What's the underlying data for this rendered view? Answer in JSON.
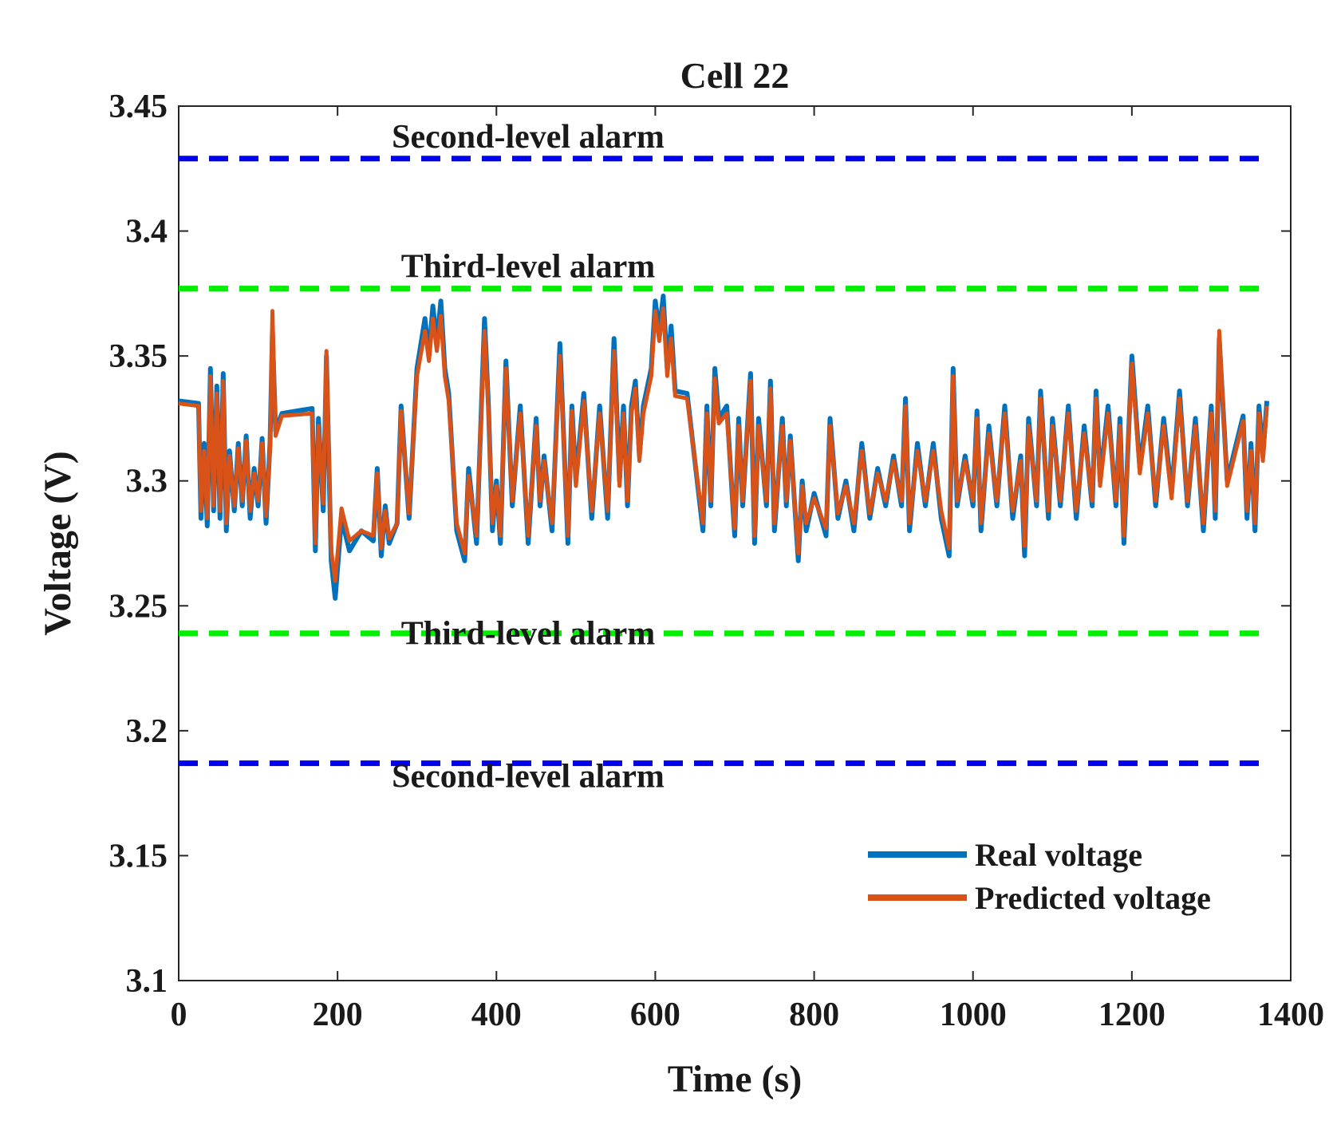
{
  "chart_data": {
    "type": "line",
    "title": "Cell 22",
    "xlabel": "Time (s)",
    "ylabel": "Voltage (V)",
    "xlim": [
      0,
      1400
    ],
    "ylim": [
      3.1,
      3.45
    ],
    "xticks": [
      0,
      200,
      400,
      600,
      800,
      1000,
      1200,
      1400
    ],
    "xtick_labels": [
      "0",
      "200",
      "400",
      "600",
      "800",
      "1000",
      "1200",
      "1400"
    ],
    "yticks": [
      3.1,
      3.15,
      3.2,
      3.25,
      3.3,
      3.35,
      3.4,
      3.45
    ],
    "ytick_labels": [
      "3.1",
      "3.15",
      "3.2",
      "3.25",
      "3.3",
      "3.35",
      "3.4",
      "3.45"
    ],
    "grid": false,
    "legend_position": "lower-right",
    "thresholds": [
      {
        "name": "Second-level alarm",
        "value": 3.429,
        "color": "#0000ee",
        "label_position": "above"
      },
      {
        "name": "Third-level alarm",
        "value": 3.377,
        "color": "#00ee00",
        "label_position": "above"
      },
      {
        "name": "Third-level alarm",
        "value": 3.239,
        "color": "#00ee00",
        "label_position": "over"
      },
      {
        "name": "Second-level alarm",
        "value": 3.187,
        "color": "#0000ee",
        "label_position": "below"
      }
    ],
    "x_range": [
      0,
      1370
    ],
    "series": [
      {
        "name": "Real voltage",
        "color": "#0072bd",
        "x": [
          0,
          25,
          28,
          32,
          36,
          40,
          44,
          48,
          52,
          56,
          60,
          64,
          70,
          75,
          80,
          85,
          90,
          95,
          100,
          105,
          110,
          115,
          118,
          122,
          130,
          168,
          172,
          176,
          182,
          186,
          192,
          197,
          205,
          215,
          230,
          245,
          250,
          255,
          260,
          265,
          275,
          280,
          290,
          300,
          310,
          315,
          320,
          325,
          330,
          335,
          340,
          350,
          360,
          365,
          375,
          385,
          390,
          395,
          400,
          405,
          412,
          420,
          430,
          440,
          450,
          455,
          460,
          470,
          480,
          490,
          495,
          500,
          510,
          520,
          530,
          540,
          548,
          555,
          560,
          565,
          570,
          575,
          580,
          585,
          595,
          600,
          605,
          610,
          615,
          620,
          625,
          640,
          660,
          665,
          670,
          675,
          680,
          690,
          700,
          705,
          710,
          720,
          725,
          730,
          740,
          745,
          750,
          760,
          765,
          770,
          780,
          785,
          790,
          800,
          815,
          820,
          830,
          840,
          850,
          860,
          870,
          880,
          890,
          900,
          910,
          915,
          920,
          930,
          940,
          950,
          960,
          970,
          975,
          980,
          990,
          1000,
          1005,
          1010,
          1020,
          1030,
          1040,
          1050,
          1060,
          1065,
          1070,
          1080,
          1085,
          1095,
          1100,
          1110,
          1120,
          1130,
          1140,
          1150,
          1155,
          1160,
          1170,
          1180,
          1185,
          1190,
          1200,
          1210,
          1220,
          1230,
          1240,
          1250,
          1260,
          1270,
          1280,
          1290,
          1300,
          1305,
          1310,
          1320,
          1340,
          1345,
          1350,
          1355,
          1360,
          1365,
          1370
        ],
        "values": [
          3.332,
          3.331,
          3.285,
          3.315,
          3.282,
          3.345,
          3.288,
          3.338,
          3.285,
          3.343,
          3.28,
          3.312,
          3.288,
          3.315,
          3.29,
          3.318,
          3.285,
          3.305,
          3.29,
          3.317,
          3.283,
          3.315,
          3.36,
          3.32,
          3.327,
          3.329,
          3.272,
          3.325,
          3.288,
          3.35,
          3.268,
          3.253,
          3.285,
          3.272,
          3.28,
          3.276,
          3.305,
          3.27,
          3.29,
          3.275,
          3.283,
          3.33,
          3.285,
          3.345,
          3.365,
          3.35,
          3.37,
          3.355,
          3.372,
          3.345,
          3.335,
          3.28,
          3.268,
          3.305,
          3.275,
          3.365,
          3.33,
          3.28,
          3.3,
          3.275,
          3.348,
          3.29,
          3.33,
          3.275,
          3.325,
          3.29,
          3.31,
          3.28,
          3.355,
          3.275,
          3.33,
          3.3,
          3.335,
          3.285,
          3.33,
          3.285,
          3.357,
          3.3,
          3.33,
          3.29,
          3.33,
          3.34,
          3.31,
          3.33,
          3.345,
          3.372,
          3.36,
          3.374,
          3.345,
          3.362,
          3.336,
          3.335,
          3.28,
          3.33,
          3.29,
          3.345,
          3.325,
          3.33,
          3.278,
          3.325,
          3.29,
          3.343,
          3.275,
          3.325,
          3.29,
          3.34,
          3.28,
          3.325,
          3.29,
          3.318,
          3.268,
          3.3,
          3.28,
          3.295,
          3.278,
          3.325,
          3.285,
          3.3,
          3.28,
          3.315,
          3.285,
          3.305,
          3.29,
          3.31,
          3.29,
          3.333,
          3.28,
          3.315,
          3.29,
          3.315,
          3.285,
          3.27,
          3.345,
          3.29,
          3.31,
          3.29,
          3.328,
          3.28,
          3.322,
          3.29,
          3.33,
          3.285,
          3.31,
          3.27,
          3.325,
          3.29,
          3.336,
          3.285,
          3.325,
          3.29,
          3.33,
          3.285,
          3.322,
          3.29,
          3.336,
          3.3,
          3.33,
          3.29,
          3.325,
          3.275,
          3.35,
          3.305,
          3.33,
          3.29,
          3.325,
          3.295,
          3.336,
          3.29,
          3.325,
          3.28,
          3.33,
          3.285,
          3.357,
          3.3,
          3.326,
          3.285,
          3.315,
          3.28,
          3.33,
          3.31,
          3.332
        ]
      },
      {
        "name": "Predicted voltage",
        "color": "#d95319",
        "x": [
          0,
          25,
          28,
          32,
          36,
          40,
          44,
          48,
          52,
          56,
          60,
          64,
          70,
          75,
          80,
          85,
          90,
          95,
          100,
          105,
          110,
          115,
          118,
          122,
          130,
          168,
          172,
          176,
          182,
          186,
          192,
          197,
          205,
          215,
          230,
          245,
          250,
          255,
          260,
          265,
          275,
          280,
          290,
          300,
          310,
          315,
          320,
          325,
          330,
          335,
          340,
          350,
          360,
          365,
          375,
          385,
          390,
          395,
          400,
          405,
          412,
          420,
          430,
          440,
          450,
          455,
          460,
          470,
          480,
          490,
          495,
          500,
          510,
          520,
          530,
          540,
          548,
          555,
          560,
          565,
          570,
          575,
          580,
          585,
          595,
          600,
          605,
          610,
          615,
          620,
          625,
          640,
          660,
          665,
          670,
          675,
          680,
          690,
          700,
          705,
          710,
          720,
          725,
          730,
          740,
          745,
          750,
          760,
          765,
          770,
          780,
          785,
          790,
          800,
          815,
          820,
          830,
          840,
          850,
          860,
          870,
          880,
          890,
          900,
          910,
          915,
          920,
          930,
          940,
          950,
          960,
          970,
          975,
          980,
          990,
          1000,
          1005,
          1010,
          1020,
          1030,
          1040,
          1050,
          1060,
          1065,
          1070,
          1080,
          1085,
          1095,
          1100,
          1110,
          1120,
          1130,
          1140,
          1150,
          1155,
          1160,
          1170,
          1180,
          1185,
          1190,
          1200,
          1210,
          1220,
          1230,
          1240,
          1250,
          1260,
          1270,
          1280,
          1290,
          1300,
          1305,
          1310,
          1320,
          1340,
          1345,
          1350,
          1355,
          1360,
          1365,
          1370
        ],
        "values": [
          3.331,
          3.33,
          3.288,
          3.312,
          3.285,
          3.342,
          3.29,
          3.335,
          3.288,
          3.34,
          3.283,
          3.31,
          3.29,
          3.313,
          3.292,
          3.316,
          3.288,
          3.303,
          3.292,
          3.315,
          3.286,
          3.313,
          3.368,
          3.318,
          3.326,
          3.327,
          3.275,
          3.322,
          3.291,
          3.352,
          3.272,
          3.26,
          3.289,
          3.276,
          3.28,
          3.278,
          3.303,
          3.273,
          3.288,
          3.277,
          3.283,
          3.328,
          3.287,
          3.342,
          3.36,
          3.348,
          3.365,
          3.352,
          3.366,
          3.342,
          3.332,
          3.283,
          3.271,
          3.302,
          3.278,
          3.36,
          3.328,
          3.283,
          3.298,
          3.278,
          3.345,
          3.292,
          3.327,
          3.278,
          3.322,
          3.292,
          3.308,
          3.283,
          3.35,
          3.278,
          3.328,
          3.298,
          3.332,
          3.288,
          3.327,
          3.288,
          3.352,
          3.298,
          3.327,
          3.292,
          3.327,
          3.337,
          3.308,
          3.327,
          3.342,
          3.368,
          3.356,
          3.369,
          3.342,
          3.357,
          3.334,
          3.333,
          3.283,
          3.327,
          3.292,
          3.341,
          3.323,
          3.327,
          3.281,
          3.322,
          3.292,
          3.34,
          3.278,
          3.322,
          3.292,
          3.337,
          3.283,
          3.322,
          3.292,
          3.316,
          3.271,
          3.298,
          3.283,
          3.293,
          3.281,
          3.322,
          3.287,
          3.298,
          3.283,
          3.312,
          3.287,
          3.303,
          3.292,
          3.308,
          3.292,
          3.33,
          3.283,
          3.312,
          3.292,
          3.312,
          3.288,
          3.273,
          3.342,
          3.292,
          3.308,
          3.292,
          3.325,
          3.283,
          3.319,
          3.292,
          3.327,
          3.288,
          3.308,
          3.274,
          3.322,
          3.292,
          3.333,
          3.288,
          3.322,
          3.292,
          3.327,
          3.288,
          3.319,
          3.292,
          3.333,
          3.298,
          3.327,
          3.292,
          3.322,
          3.278,
          3.347,
          3.303,
          3.327,
          3.292,
          3.322,
          3.293,
          3.333,
          3.292,
          3.322,
          3.283,
          3.327,
          3.288,
          3.36,
          3.298,
          3.324,
          3.288,
          3.312,
          3.283,
          3.327,
          3.308,
          3.33
        ]
      }
    ]
  }
}
